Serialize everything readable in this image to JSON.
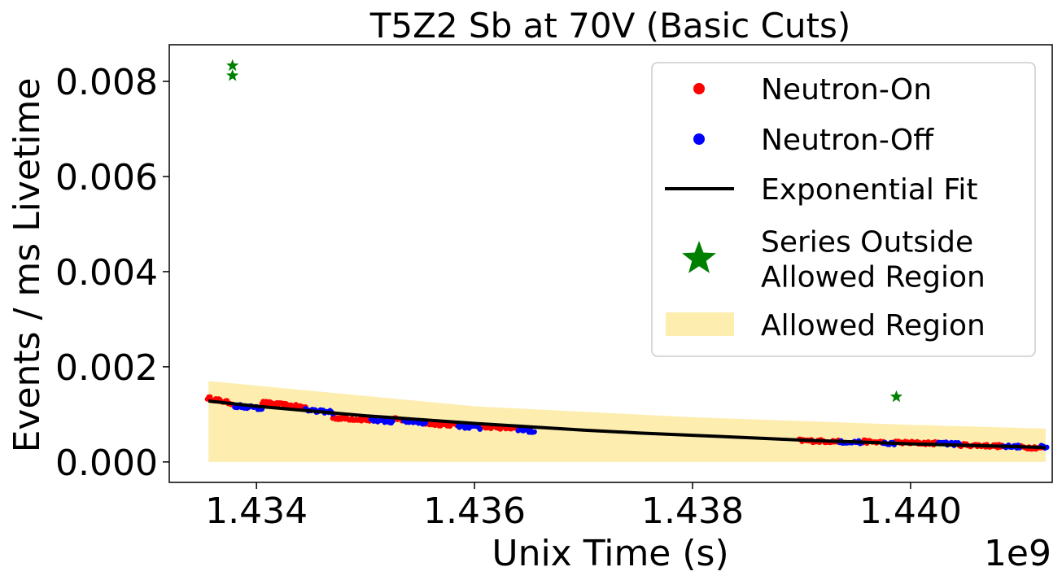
{
  "chart_data": {
    "type": "scatter",
    "title": "T5Z2 Sb at 70V (Basic Cuts)",
    "xlabel": "Unix Time (s)",
    "ylabel": "Events / ms Livetime",
    "x_offset_label": "1e9",
    "x_scale_factor": 1000000000,
    "xlim": [
      1.4332,
      1.4413
    ],
    "ylim": [
      -0.00043,
      0.00877
    ],
    "x_ticks": [
      1.434,
      1.436,
      1.438,
      1.44
    ],
    "x_tick_labels": [
      "1.434",
      "1.436",
      "1.438",
      "1.440"
    ],
    "y_ticks": [
      0.0,
      0.002,
      0.004,
      0.006,
      0.008
    ],
    "y_tick_labels": [
      "0.000",
      "0.002",
      "0.004",
      "0.006",
      "0.008"
    ],
    "grid": false,
    "legend_position": "top-right",
    "legend": [
      {
        "label": "Neutron-On",
        "marker": "dot",
        "color": "#ff0000"
      },
      {
        "label": "Neutron-Off",
        "marker": "dot",
        "color": "#0000ff"
      },
      {
        "label": "Exponential Fit",
        "marker": "line",
        "color": "#000000"
      },
      {
        "label": [
          "Series Outside",
          "Allowed Region"
        ],
        "marker": "star",
        "color": "#008000"
      },
      {
        "label": "Allowed Region",
        "marker": "patch",
        "color": "#fdeeb0"
      }
    ],
    "allowed_region": {
      "color": "#fdeeb0",
      "x": [
        1.43356,
        1.436,
        1.438,
        1.44,
        1.44124
      ],
      "upper": [
        0.0017,
        0.00117,
        0.00094,
        0.00078,
        0.0007
      ],
      "lower": [
        0.0,
        0.0,
        0.0,
        0.0,
        0.0
      ]
    },
    "exponential_fit": {
      "color": "#000000",
      "x": [
        1.43356,
        1.434,
        1.4345,
        1.435,
        1.4355,
        1.436,
        1.4365,
        1.437,
        1.4375,
        1.438,
        1.4385,
        1.439,
        1.4395,
        1.44,
        1.4405,
        1.441,
        1.44124
      ],
      "y": [
        0.00128,
        0.00117,
        0.00107,
        0.00097,
        0.00089,
        0.00081,
        0.00074,
        0.00067,
        0.00061,
        0.00056,
        0.00051,
        0.00046,
        0.00042,
        0.00038,
        0.00035,
        0.00032,
        0.0003
      ]
    },
    "series": [
      {
        "name": "Neutron-On",
        "color": "#ff0000",
        "segments": [
          {
            "x0": 1.43355,
            "x1": 1.43378,
            "y0": 0.00135,
            "y1": 0.00123
          },
          {
            "x0": 1.43405,
            "x1": 1.43445,
            "y0": 0.00125,
            "y1": 0.00115
          },
          {
            "x0": 1.4347,
            "x1": 1.43505,
            "y0": 0.00093,
            "y1": 0.00088
          },
          {
            "x0": 1.43525,
            "x1": 1.43535,
            "y0": 0.0009,
            "y1": 0.00088
          },
          {
            "x0": 1.43555,
            "x1": 1.43585,
            "y0": 0.0008,
            "y1": 0.00078
          },
          {
            "x0": 1.43605,
            "x1": 1.4364,
            "y0": 0.00075,
            "y1": 0.0007
          },
          {
            "x0": 1.43898,
            "x1": 1.43935,
            "y0": 0.00045,
            "y1": 0.00043
          },
          {
            "x0": 1.43955,
            "x1": 1.43975,
            "y0": 0.00043,
            "y1": 0.00041
          },
          {
            "x0": 1.43985,
            "x1": 1.44025,
            "y0": 0.00041,
            "y1": 0.00039
          },
          {
            "x0": 1.44045,
            "x1": 1.44085,
            "y0": 0.00036,
            "y1": 0.00033
          },
          {
            "x0": 1.441,
            "x1": 1.4412,
            "y0": 0.00031,
            "y1": 0.0003
          }
        ]
      },
      {
        "name": "Neutron-Off",
        "color": "#0000ff",
        "segments": [
          {
            "x0": 1.4338,
            "x1": 1.43405,
            "y0": 0.00118,
            "y1": 0.00113
          },
          {
            "x0": 1.43445,
            "x1": 1.4347,
            "y0": 0.0011,
            "y1": 0.00104
          },
          {
            "x0": 1.43505,
            "x1": 1.43525,
            "y0": 0.00088,
            "y1": 0.00085
          },
          {
            "x0": 1.43535,
            "x1": 1.43555,
            "y0": 0.00085,
            "y1": 0.00082
          },
          {
            "x0": 1.43585,
            "x1": 1.43605,
            "y0": 0.00075,
            "y1": 0.00072
          },
          {
            "x0": 1.4364,
            "x1": 1.43655,
            "y0": 0.00068,
            "y1": 0.00065
          },
          {
            "x0": 1.43935,
            "x1": 1.43955,
            "y0": 0.00043,
            "y1": 0.00041
          },
          {
            "x0": 1.43975,
            "x1": 1.43985,
            "y0": 0.0004,
            "y1": 0.00039
          },
          {
            "x0": 1.44025,
            "x1": 1.44045,
            "y0": 0.0004,
            "y1": 0.00037
          },
          {
            "x0": 1.44085,
            "x1": 1.441,
            "y0": 0.00034,
            "y1": 0.00032
          },
          {
            "x0": 1.4412,
            "x1": 1.44125,
            "y0": 0.00033,
            "y1": 0.00032
          }
        ]
      }
    ],
    "outliers": {
      "name": "Series Outside Allowed Region",
      "color": "#008000",
      "points": [
        {
          "x": 1.43378,
          "y": 0.00833
        },
        {
          "x": 1.43378,
          "y": 0.00812
        },
        {
          "x": 1.43987,
          "y": 0.00137
        }
      ]
    }
  }
}
